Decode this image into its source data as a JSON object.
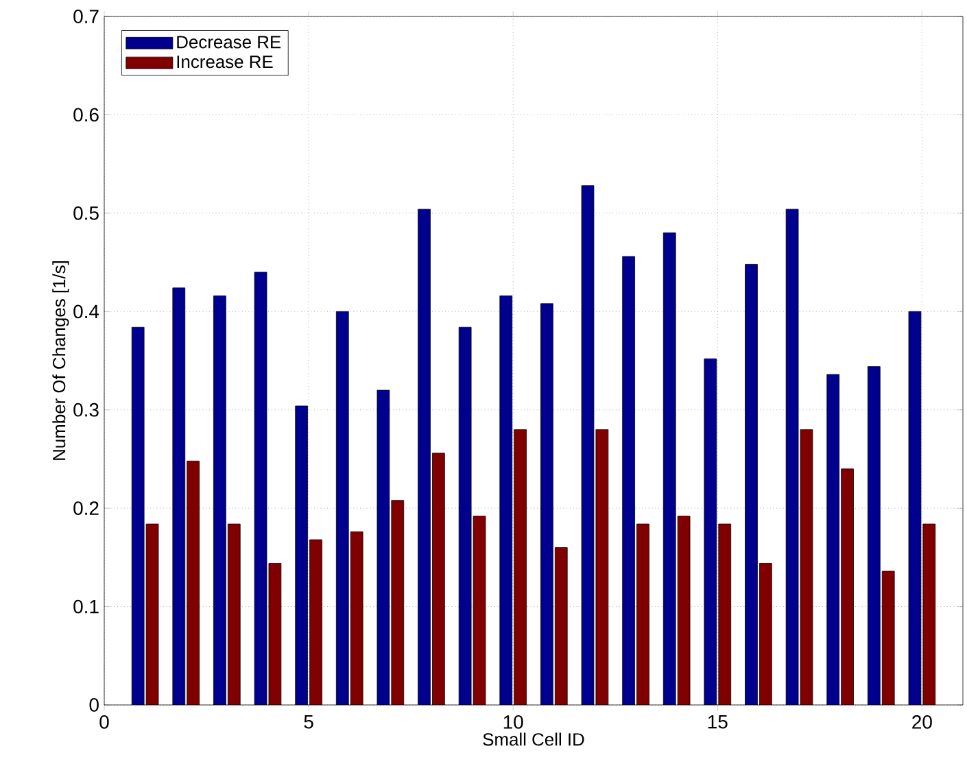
{
  "chart_data": {
    "type": "bar",
    "xlabel": "Small Cell ID",
    "ylabel": "Number Of Changes [1/s]",
    "x": [
      1,
      2,
      3,
      4,
      5,
      6,
      7,
      8,
      9,
      10,
      11,
      12,
      13,
      14,
      15,
      16,
      17,
      18,
      19,
      20
    ],
    "series": [
      {
        "name": "Decrease RE",
        "color": "#00008f",
        "values": [
          0.384,
          0.424,
          0.416,
          0.44,
          0.304,
          0.4,
          0.32,
          0.504,
          0.384,
          0.416,
          0.408,
          0.528,
          0.456,
          0.48,
          0.352,
          0.448,
          0.504,
          0.336,
          0.344,
          0.4
        ]
      },
      {
        "name": "Increase RE",
        "color": "#800000",
        "values": [
          0.184,
          0.248,
          0.184,
          0.144,
          0.168,
          0.176,
          0.208,
          0.256,
          0.192,
          0.28,
          0.16,
          0.28,
          0.184,
          0.192,
          0.184,
          0.144,
          0.28,
          0.24,
          0.136,
          0.184
        ]
      }
    ],
    "xlim": [
      0,
      21
    ],
    "xticks": [
      0,
      5,
      10,
      15,
      20
    ],
    "ylim": [
      0,
      0.7
    ],
    "yticks": [
      0,
      0.1,
      0.2,
      0.3,
      0.4,
      0.5,
      0.6,
      0.7
    ],
    "grid": true,
    "legend": "top left"
  }
}
